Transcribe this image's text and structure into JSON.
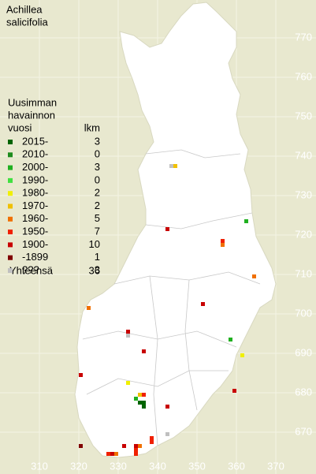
{
  "chart_data": {
    "type": "grid-map",
    "title": [
      "Achillea",
      "salicifolia"
    ],
    "legend_title": [
      "Uusimman",
      "havainnon",
      "vuosi"
    ],
    "count_header": "lkm",
    "xlim": [
      300,
      380
    ],
    "ylim": [
      660,
      780
    ],
    "xticks": [
      310,
      320,
      330,
      340,
      350,
      360,
      370
    ],
    "yticks": [
      670,
      680,
      690,
      700,
      710,
      720,
      730,
      740,
      750,
      760,
      770
    ],
    "series": [
      {
        "name": "2015-",
        "color": "#006400",
        "count": 3,
        "x": [
          335,
          336,
          336
        ],
        "y": [
          677,
          677,
          676
        ]
      },
      {
        "name": "2010-",
        "color": "#1e8c1e",
        "count": 0,
        "x": [],
        "y": []
      },
      {
        "name": "2000-",
        "color": "#20b020",
        "count": 3,
        "x": [
          362,
          358,
          334
        ],
        "y": [
          723,
          693,
          678
        ]
      },
      {
        "name": "1990-",
        "color": "#40e040",
        "count": 0,
        "x": [],
        "y": []
      },
      {
        "name": "1980-",
        "color": "#f0f000",
        "count": 2,
        "x": [
          361,
          332
        ],
        "y": [
          689,
          682
        ]
      },
      {
        "name": "1970-",
        "color": "#f0c000",
        "count": 2,
        "x": [
          344,
          335
        ],
        "y": [
          737,
          679
        ]
      },
      {
        "name": "1960-",
        "color": "#f07000",
        "count": 5,
        "x": [
          356,
          364,
          322,
          335,
          329
        ],
        "y": [
          717,
          709,
          701,
          666,
          664
        ]
      },
      {
        "name": "1950-",
        "color": "#f02000",
        "count": 7,
        "x": [
          356,
          336,
          338,
          338,
          334,
          334,
          327
        ],
        "y": [
          718,
          679,
          668,
          667,
          665,
          664,
          664
        ]
      },
      {
        "name": "1900-",
        "color": "#c80000",
        "count": 10,
        "x": [
          342,
          351,
          332,
          336,
          320,
          359,
          342,
          331,
          328,
          334
        ],
        "y": [
          721,
          702,
          695,
          690,
          684,
          680,
          676,
          666,
          664,
          666
        ]
      },
      {
        "name": "-1899",
        "color": "#800000",
        "count": 1,
        "x": [
          320
        ],
        "y": [
          666
        ]
      },
      {
        "name": "???",
        "color": "#c0c0c0",
        "count": 3,
        "x": [
          343,
          332,
          342
        ],
        "y": [
          737,
          694,
          669
        ]
      }
    ],
    "total_label": "Yhteensä",
    "total": 36
  }
}
